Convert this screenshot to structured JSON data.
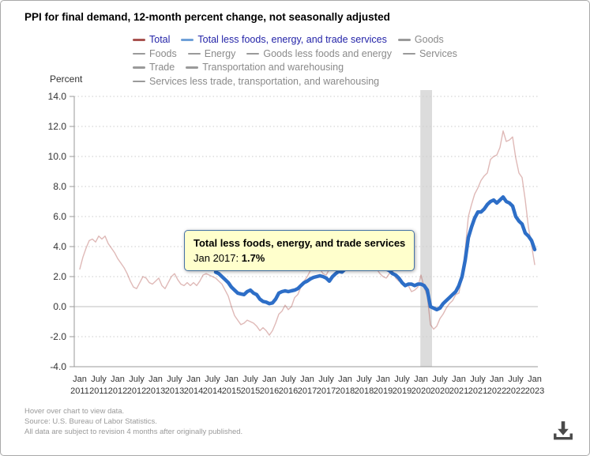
{
  "header": {
    "title": "PPI for final demand, 12-month percent change, not seasonally adjusted"
  },
  "legend": {
    "items": [
      {
        "label": "Total",
        "dash_color": "#a8524f",
        "active": true
      },
      {
        "label": "Total less foods, energy, and trade services",
        "dash_color": "#6fa0d8",
        "active": true
      },
      {
        "label": "Goods",
        "dash_color": "#9a9a9a",
        "active": false
      },
      {
        "label": "Foods",
        "dash_color": "#9a9a9a",
        "active": false
      },
      {
        "label": "Energy",
        "dash_color": "#9a9a9a",
        "active": false
      },
      {
        "label": "Goods less foods and energy",
        "dash_color": "#9a9a9a",
        "active": false
      },
      {
        "label": "Services",
        "dash_color": "#9a9a9a",
        "active": false
      },
      {
        "label": "Trade",
        "dash_color": "#9a9a9a",
        "active": false
      },
      {
        "label": "Transportation and warehousing",
        "dash_color": "#9a9a9a",
        "active": false
      },
      {
        "label": "Services less trade, transportation, and warehousing",
        "dash_color": "#9a9a9a",
        "active": false
      }
    ]
  },
  "tooltip": {
    "series_name": "Total less foods, energy, and trade services",
    "point_label": "Jan 2017:",
    "value": "1.7%",
    "bg_color": "#ffffcc",
    "border_color": "#4572a7"
  },
  "footer": {
    "line1": "Hover over chart to view data.",
    "line2": "Source: U.S. Bureau of Labor Statistics.",
    "line3": "All data are subject to revision 4 months after originally published."
  },
  "icons": {
    "download": "download-icon"
  },
  "chart_data": {
    "type": "line",
    "title": "PPI for final demand, 12-month percent change, not seasonally adjusted",
    "xlabel": "",
    "ylabel": "Percent",
    "ylim": [
      -4,
      14
    ],
    "ytick_step": 2,
    "grid": "dotted-horizontal",
    "legend_position": "top",
    "x_range": [
      "2011-01",
      "2023-01"
    ],
    "y_ticks": [
      "14.0",
      "12.0",
      "10.0",
      "8.0",
      "6.0",
      "4.0",
      "2.0",
      "0.0",
      "-2.0",
      "-4.0"
    ],
    "x_ticks": [
      {
        "month": "Jan",
        "year": "2011"
      },
      {
        "month": "July",
        "year": "2011"
      },
      {
        "month": "Jan",
        "year": "2012"
      },
      {
        "month": "July",
        "year": "2012"
      },
      {
        "month": "Jan",
        "year": "2013"
      },
      {
        "month": "July",
        "year": "2013"
      },
      {
        "month": "Jan",
        "year": "2014"
      },
      {
        "month": "July",
        "year": "2014"
      },
      {
        "month": "Jan",
        "year": "2015"
      },
      {
        "month": "July",
        "year": "2015"
      },
      {
        "month": "Jan",
        "year": "2016"
      },
      {
        "month": "July",
        "year": "2016"
      },
      {
        "month": "Jan",
        "year": "2017"
      },
      {
        "month": "July",
        "year": "2017"
      },
      {
        "month": "Jan",
        "year": "2018"
      },
      {
        "month": "July",
        "year": "2018"
      },
      {
        "month": "Jan",
        "year": "2019"
      },
      {
        "month": "July",
        "year": "2019"
      },
      {
        "month": "Jan",
        "year": "2020"
      },
      {
        "month": "July",
        "year": "2020"
      },
      {
        "month": "Jan",
        "year": "2021"
      },
      {
        "month": "July",
        "year": "2021"
      },
      {
        "month": "Jan",
        "year": "2022"
      },
      {
        "month": "July",
        "year": "2022"
      },
      {
        "month": "Jan",
        "year": "2023"
      }
    ],
    "recession_band": {
      "from": "2020-02",
      "to": "2020-04",
      "color": "#dcdcdc"
    },
    "series": [
      {
        "name": "Total",
        "color": "#aa4643",
        "opacity": 0.38,
        "width": 1.4,
        "visible": true,
        "start_month": "2011-01",
        "values": [
          2.5,
          3.3,
          3.9,
          4.4,
          4.5,
          4.3,
          4.7,
          4.5,
          4.7,
          4.2,
          3.9,
          3.6,
          3.2,
          2.9,
          2.6,
          2.2,
          1.7,
          1.3,
          1.2,
          1.6,
          2.0,
          1.9,
          1.6,
          1.5,
          1.7,
          1.9,
          1.4,
          1.2,
          1.6,
          2.0,
          2.2,
          1.8,
          1.5,
          1.4,
          1.6,
          1.4,
          1.6,
          1.4,
          1.7,
          2.1,
          2.2,
          2.1,
          2.0,
          1.9,
          1.7,
          1.5,
          1.1,
          0.7,
          0.0,
          -0.6,
          -0.9,
          -1.2,
          -1.1,
          -0.9,
          -1.0,
          -1.1,
          -1.3,
          -1.6,
          -1.4,
          -1.6,
          -1.9,
          -1.6,
          -1.1,
          -0.5,
          -0.3,
          0.1,
          -0.2,
          0.0,
          0.6,
          0.8,
          1.3,
          1.7,
          2.0,
          2.4,
          2.5,
          2.4,
          2.5,
          2.2,
          2.1,
          2.5,
          2.8,
          2.9,
          3.0,
          2.7,
          2.8,
          2.9,
          3.0,
          2.7,
          3.1,
          3.3,
          3.4,
          3.0,
          2.7,
          2.9,
          2.5,
          2.2,
          2.0,
          1.9,
          2.2,
          2.4,
          1.9,
          1.7,
          1.7,
          1.4,
          1.4,
          1.0,
          1.1,
          1.3,
          2.1,
          1.3,
          0.7,
          -1.2,
          -1.5,
          -1.3,
          -0.8,
          -0.5,
          -0.1,
          0.2,
          0.4,
          0.8,
          0.9,
          2.0,
          3.8,
          6.0,
          6.8,
          7.5,
          7.9,
          8.4,
          8.7,
          8.9,
          9.8,
          10.0,
          10.1,
          10.6,
          11.7,
          11.0,
          11.1,
          11.3,
          9.9,
          8.9,
          8.6,
          7.1,
          5.3,
          4.1,
          2.8
        ]
      },
      {
        "name": "Total less foods, energy, and trade services",
        "color": "#2d6ec7",
        "opacity": 1,
        "width": 4.5,
        "visible": true,
        "start_month": "2014-08",
        "values": [
          2.3,
          2.2,
          2.0,
          1.8,
          1.6,
          1.3,
          1.1,
          0.9,
          0.85,
          0.8,
          1.0,
          1.1,
          0.9,
          0.8,
          0.5,
          0.35,
          0.3,
          0.2,
          0.25,
          0.5,
          0.9,
          1.0,
          1.05,
          1.0,
          1.05,
          1.1,
          1.2,
          1.4,
          1.6,
          1.7,
          1.85,
          1.95,
          2.0,
          2.05,
          2.0,
          1.9,
          1.7,
          2.0,
          2.2,
          2.35,
          2.3,
          2.5,
          2.6,
          2.8,
          2.85,
          2.9,
          2.9,
          2.9,
          2.85,
          2.8,
          2.8,
          2.75,
          2.8,
          2.6,
          2.5,
          2.4,
          2.2,
          2.1,
          1.9,
          1.6,
          1.4,
          1.5,
          1.5,
          1.4,
          1.5,
          1.5,
          1.4,
          1.1,
          0.0,
          -0.1,
          -0.2,
          -0.1,
          0.2,
          0.4,
          0.6,
          0.8,
          1.0,
          1.4,
          2.0,
          3.1,
          4.6,
          5.3,
          5.9,
          6.3,
          6.3,
          6.5,
          6.8,
          7.0,
          7.1,
          6.9,
          7.1,
          7.3,
          7.0,
          6.9,
          6.7,
          6.0,
          5.7,
          5.5,
          4.9,
          4.7,
          4.4,
          3.8
        ]
      },
      {
        "name": "Goods",
        "visible": false
      },
      {
        "name": "Foods",
        "visible": false
      },
      {
        "name": "Energy",
        "visible": false
      },
      {
        "name": "Goods less foods and energy",
        "visible": false
      },
      {
        "name": "Services",
        "visible": false
      },
      {
        "name": "Trade",
        "visible": false
      },
      {
        "name": "Transportation and warehousing",
        "visible": false
      },
      {
        "name": "Services less trade, transportation, and warehousing",
        "visible": false
      }
    ]
  }
}
